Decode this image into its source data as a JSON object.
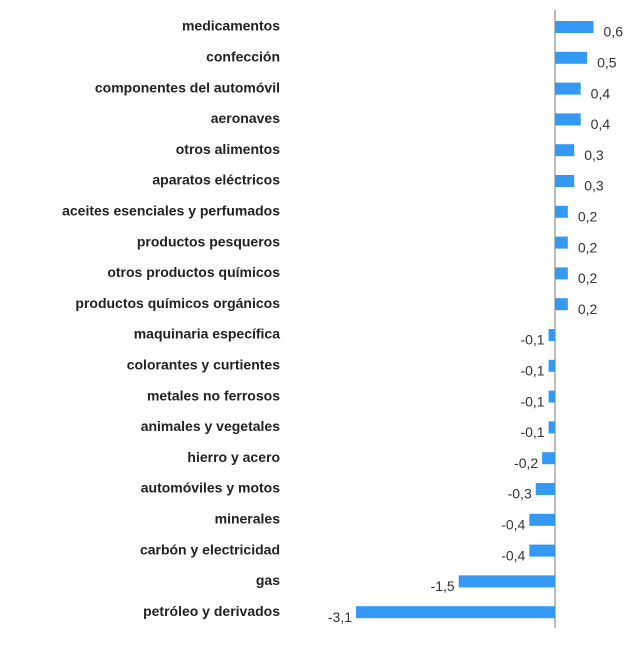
{
  "chart_data": {
    "type": "barh",
    "categories": [
      "medicamentos",
      "confección",
      "componentes del automóvil",
      "aeronaves",
      "otros alimentos",
      "aparatos eléctricos",
      "aceites esenciales y perfumados",
      "productos pesqueros",
      "otros productos químicos",
      "productos químicos orgánicos",
      "maquinaria específica",
      "colorantes y curtientes",
      "metales no ferrosos",
      "animales y vegetales",
      "hierro y acero",
      "automóviles y motos",
      "minerales",
      "carbón y electricidad",
      "gas",
      "petróleo y derivados"
    ],
    "values": [
      0.6,
      0.5,
      0.4,
      0.4,
      0.3,
      0.3,
      0.2,
      0.2,
      0.2,
      0.2,
      -0.1,
      -0.1,
      -0.1,
      -0.1,
      -0.2,
      -0.3,
      -0.4,
      -0.4,
      -1.5,
      -3.1
    ],
    "value_labels": [
      "0,6",
      "0,5",
      "0,4",
      "0,4",
      "0,3",
      "0,3",
      "0,2",
      "0,2",
      "0,2",
      "0,2",
      "-0,1",
      "-0,1",
      "-0,1",
      "-0,1",
      "-0,2",
      "-0,3",
      "-0,4",
      "-0,4",
      "-1,5",
      "-3,1"
    ],
    "color": "#3399f3"
  }
}
